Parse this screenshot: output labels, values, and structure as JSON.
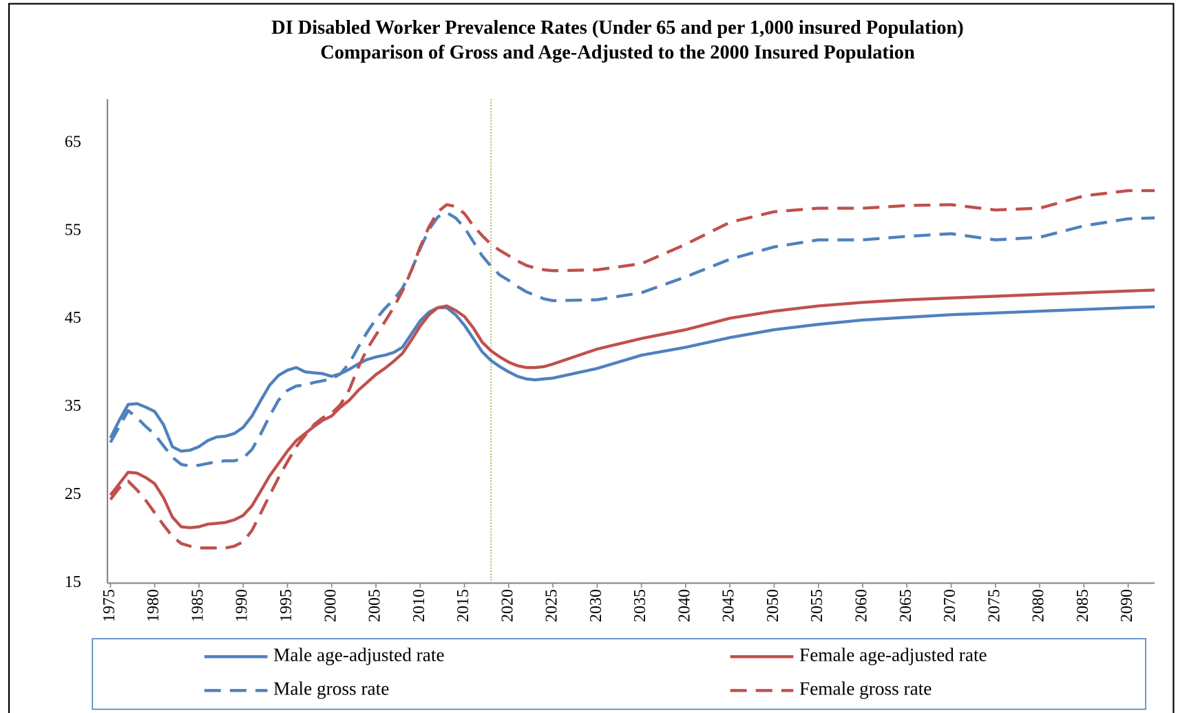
{
  "chart_data": {
    "type": "line",
    "title": "DI Disabled Worker Prevalence Rates (Under 65 and per 1,000 insured Population)",
    "subtitle": "Comparison of Gross and Age-Adjusted to the 2000 Insured Population",
    "x": [
      1975,
      1976,
      1977,
      1978,
      1979,
      1980,
      1981,
      1982,
      1983,
      1984,
      1985,
      1986,
      1987,
      1988,
      1989,
      1990,
      1991,
      1992,
      1993,
      1994,
      1995,
      1996,
      1997,
      1998,
      1999,
      2000,
      2001,
      2002,
      2003,
      2004,
      2005,
      2006,
      2007,
      2008,
      2009,
      2010,
      2011,
      2012,
      2013,
      2014,
      2015,
      2016,
      2017,
      2018,
      2019,
      2020,
      2021,
      2022,
      2023,
      2024,
      2025,
      2030,
      2035,
      2040,
      2045,
      2050,
      2055,
      2060,
      2065,
      2070,
      2075,
      2080,
      2085,
      2090,
      2093
    ],
    "series": [
      {
        "name": "Male age-adjusted rate",
        "color": "#4f81bd",
        "dashed": false,
        "values": [
          31.5,
          33.5,
          35.3,
          35.4,
          35.0,
          34.5,
          33.0,
          30.5,
          30.0,
          30.1,
          30.5,
          31.2,
          31.6,
          31.7,
          32.0,
          32.7,
          34.0,
          35.8,
          37.5,
          38.6,
          39.2,
          39.5,
          39.0,
          38.9,
          38.8,
          38.5,
          38.8,
          39.3,
          39.9,
          40.4,
          40.7,
          40.9,
          41.2,
          41.8,
          43.3,
          44.8,
          45.8,
          46.3,
          46.3,
          45.5,
          44.3,
          42.8,
          41.3,
          40.3,
          39.6,
          39.0,
          38.5,
          38.2,
          38.1,
          38.2,
          38.3,
          39.4,
          40.9,
          41.8,
          42.9,
          43.8,
          44.4,
          44.9,
          45.2,
          45.5,
          45.7,
          45.9,
          46.1,
          46.3,
          46.4
        ]
      },
      {
        "name": "Female age-adjusted rate",
        "color": "#c0504d",
        "dashed": false,
        "values": [
          25.0,
          26.3,
          27.6,
          27.5,
          27.0,
          26.3,
          24.7,
          22.5,
          21.4,
          21.3,
          21.4,
          21.7,
          21.8,
          21.9,
          22.2,
          22.7,
          23.8,
          25.5,
          27.2,
          28.6,
          30.0,
          31.2,
          32.0,
          32.8,
          33.5,
          34.0,
          35.0,
          35.8,
          36.9,
          37.8,
          38.7,
          39.4,
          40.2,
          41.1,
          42.6,
          44.2,
          45.5,
          46.3,
          46.5,
          46.0,
          45.3,
          44.0,
          42.4,
          41.4,
          40.7,
          40.1,
          39.7,
          39.5,
          39.5,
          39.6,
          39.9,
          41.6,
          42.8,
          43.8,
          45.1,
          45.9,
          46.5,
          46.9,
          47.2,
          47.4,
          47.6,
          47.8,
          48.0,
          48.2,
          48.3
        ]
      },
      {
        "name": "Male gross rate",
        "color": "#4f81bd",
        "dashed": true,
        "values": [
          31.0,
          32.8,
          34.6,
          33.8,
          32.8,
          31.9,
          30.6,
          29.3,
          28.5,
          28.3,
          28.4,
          28.6,
          28.8,
          28.9,
          28.9,
          29.2,
          30.2,
          32.0,
          34.0,
          35.8,
          36.9,
          37.4,
          37.5,
          37.8,
          38.0,
          38.2,
          38.8,
          40.0,
          41.8,
          43.5,
          45.0,
          46.2,
          47.2,
          48.5,
          50.5,
          53.0,
          55.2,
          56.6,
          57.1,
          56.5,
          55.4,
          53.8,
          52.2,
          51.0,
          50.0,
          49.4,
          48.7,
          48.1,
          47.7,
          47.3,
          47.1,
          47.2,
          48.0,
          49.8,
          51.8,
          53.2,
          54.0,
          54.0,
          54.4,
          54.7,
          54.0,
          54.3,
          55.6,
          56.4,
          56.5
        ]
      },
      {
        "name": "Female gross rate",
        "color": "#c0504d",
        "dashed": true,
        "values": [
          24.5,
          25.8,
          26.6,
          25.6,
          24.4,
          23.0,
          21.6,
          20.3,
          19.5,
          19.2,
          19.0,
          19.0,
          19.0,
          19.0,
          19.2,
          19.7,
          21.0,
          23.0,
          25.0,
          27.0,
          28.8,
          30.5,
          31.8,
          33.0,
          33.8,
          34.3,
          35.3,
          37.0,
          39.5,
          41.6,
          43.2,
          44.7,
          46.3,
          48.2,
          50.5,
          53.2,
          55.5,
          57.2,
          58.0,
          57.8,
          57.0,
          55.6,
          54.5,
          53.5,
          52.8,
          52.2,
          51.6,
          51.1,
          50.8,
          50.6,
          50.5,
          50.6,
          51.3,
          53.5,
          56.0,
          57.2,
          57.6,
          57.6,
          57.9,
          58.0,
          57.4,
          57.6,
          59.0,
          59.6,
          59.6
        ]
      }
    ],
    "xlim": [
      1975,
      2093
    ],
    "xticks": [
      1975,
      1980,
      1985,
      1990,
      1995,
      2000,
      2005,
      2010,
      2015,
      2020,
      2025,
      2030,
      2035,
      2040,
      2045,
      2050,
      2055,
      2060,
      2065,
      2070,
      2075,
      2080,
      2085,
      2090
    ],
    "ylim": [
      15,
      70
    ],
    "yticks": [
      15,
      25,
      35,
      45,
      55,
      65
    ],
    "reference_x": 2018,
    "grid": false,
    "legend": "bottom"
  }
}
